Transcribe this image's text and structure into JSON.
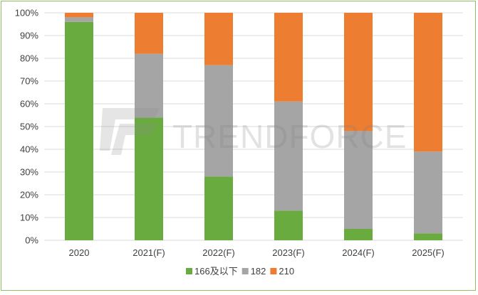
{
  "chart_data": {
    "type": "bar",
    "stacked": true,
    "categories": [
      "2020",
      "2021(F)",
      "2022(F)",
      "2023(F)",
      "2024(F)",
      "2025(F)"
    ],
    "series": [
      {
        "name": "166及以下",
        "color": "#6aab3f",
        "values": [
          96,
          54,
          28,
          13,
          5,
          3
        ]
      },
      {
        "name": "182",
        "color": "#a5a5a5",
        "values": [
          2,
          28,
          49,
          48,
          43,
          36
        ]
      },
      {
        "name": "210",
        "color": "#ed7d31",
        "values": [
          2,
          18,
          23,
          39,
          52,
          61
        ]
      }
    ],
    "ylim": [
      0,
      100
    ],
    "yticks": [
      "0%",
      "10%",
      "20%",
      "30%",
      "40%",
      "50%",
      "60%",
      "70%",
      "80%",
      "90%",
      "100%"
    ],
    "grid": true,
    "legend": "bottom",
    "watermark": "TRENDFORCE"
  }
}
